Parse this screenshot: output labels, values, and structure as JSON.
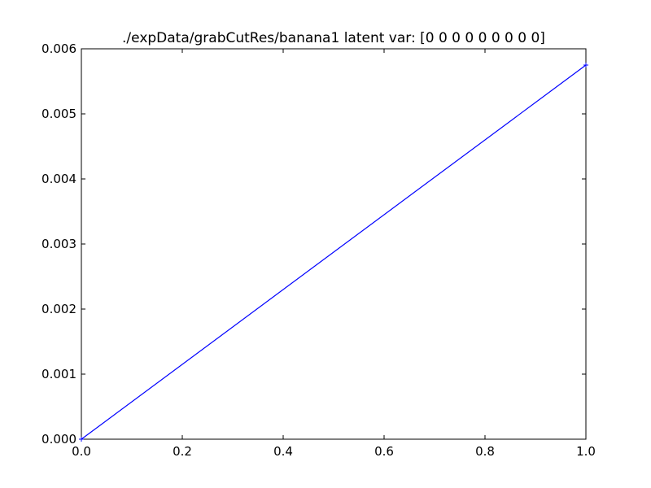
{
  "chart_data": {
    "type": "line",
    "title": "./expData/grabCutRes/banana1 latent var: [0 0 0 0 0 0 0 0 0]",
    "xlabel": "",
    "ylabel": "",
    "xlim": [
      0.0,
      1.0
    ],
    "ylim": [
      0.0,
      0.006
    ],
    "x_ticks": [
      "0.0",
      "0.2",
      "0.4",
      "0.6",
      "0.8",
      "1.0"
    ],
    "y_ticks": [
      "0.000",
      "0.001",
      "0.002",
      "0.003",
      "0.004",
      "0.005",
      "0.006"
    ],
    "x_tick_values": [
      0.0,
      0.2,
      0.4,
      0.6,
      0.8,
      1.0
    ],
    "y_tick_values": [
      0.0,
      0.001,
      0.002,
      0.003,
      0.004,
      0.005,
      0.006
    ],
    "grid": false,
    "legend": "none",
    "series": [
      {
        "color": "#0000ff",
        "x": [
          0.0,
          1.0
        ],
        "y": [
          0.0,
          0.00575
        ]
      }
    ]
  }
}
